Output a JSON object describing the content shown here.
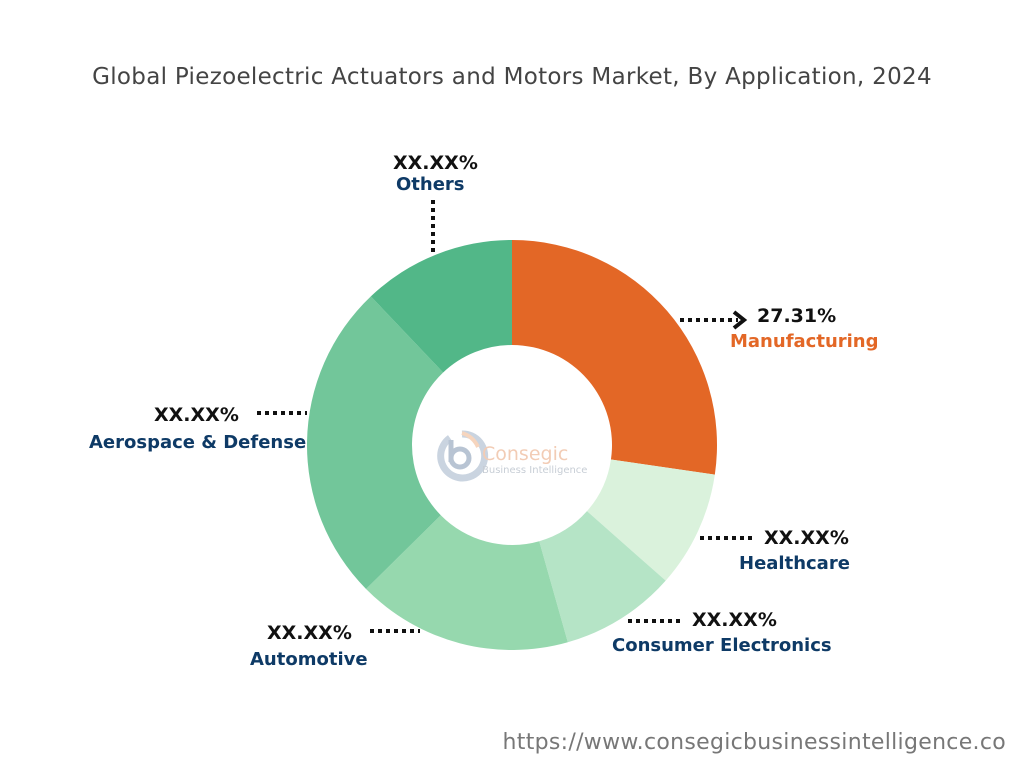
{
  "chart_data": {
    "type": "pie",
    "donut": true,
    "title": "Global Piezoelectric Actuators and Motors Market, By Application, 2024",
    "categories": [
      "Manufacturing",
      "Healthcare",
      "Consumer Electronics",
      "Automotive",
      "Aerospace & Defense",
      "Others"
    ],
    "values": [
      27.31,
      9.2,
      9.1,
      17.0,
      25.3,
      12.09
    ],
    "value_labels": [
      "27.31%",
      "XX.XX%",
      "XX.XX%",
      "XX.XX%",
      "XX.XX%",
      "XX.XX%"
    ],
    "colors": [
      "#E36726",
      "#DAF2DC",
      "#B5E4C6",
      "#96D8AE",
      "#72C69A",
      "#52B788"
    ],
    "label_colors": [
      "#E36726",
      "#0E3A66",
      "#0E3A66",
      "#0E3A66",
      "#0E3A66",
      "#0E3A66"
    ]
  },
  "logo": {
    "name": "Consegic",
    "tagline": "Business Intelligence"
  },
  "footer": {
    "url": "https://www.consegicbusinessintelligence.co"
  }
}
